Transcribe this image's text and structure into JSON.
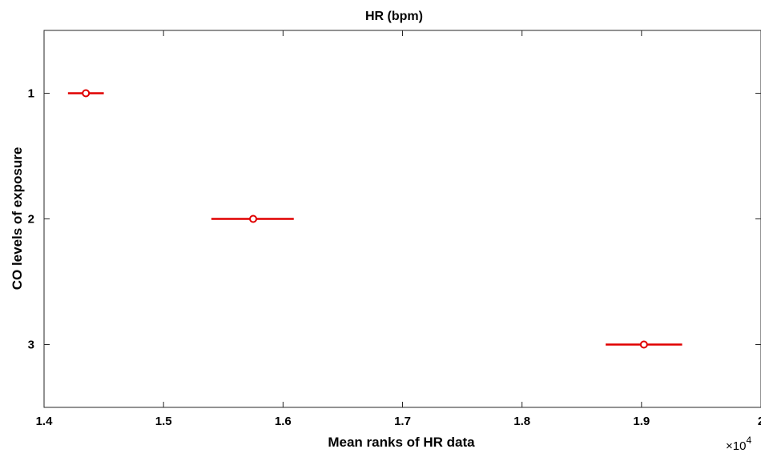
{
  "chart_data": {
    "type": "scatter",
    "title": "HR (bpm)",
    "xlabel": "Mean ranks of HR data",
    "ylabel": "CO levels of exposure",
    "x_tick_labels": [
      "1.4",
      "1.5",
      "1.6",
      "1.7",
      "1.8",
      "1.9",
      "2"
    ],
    "x_ticks": [
      1.4,
      1.5,
      1.6,
      1.7,
      1.8,
      1.9,
      2.0
    ],
    "x_exponent_base": "×10",
    "x_exponent_power": "4",
    "xlim": [
      1.4,
      2.0
    ],
    "y_tick_labels": [
      "1",
      "2",
      "3"
    ],
    "y_ticks": [
      1,
      2,
      3
    ],
    "ylim": [
      0.5,
      3.5
    ],
    "y_reversed": true,
    "grid": false,
    "color": "#e00000",
    "series": [
      {
        "points": [
          {
            "group": 1,
            "mean": 1.435,
            "low": 1.42,
            "high": 1.45
          },
          {
            "group": 2,
            "mean": 1.575,
            "low": 1.54,
            "high": 1.609
          },
          {
            "group": 3,
            "mean": 1.902,
            "low": 1.87,
            "high": 1.934
          }
        ]
      }
    ]
  }
}
